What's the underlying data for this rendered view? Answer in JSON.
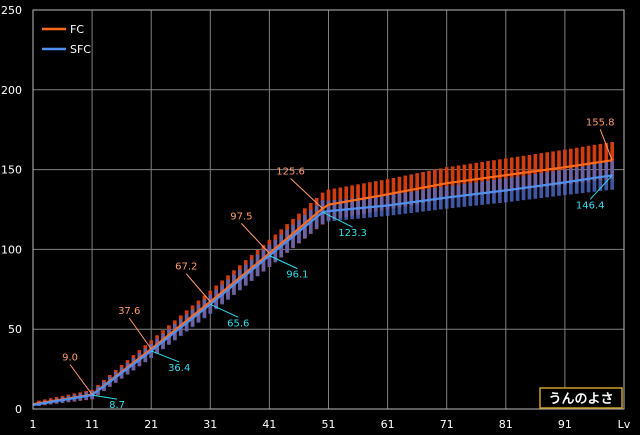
{
  "chart_data": {
    "type": "line",
    "xlabel": "Lv",
    "ylabel": "",
    "xlim": [
      1,
      101
    ],
    "ylim": [
      0,
      250
    ],
    "x_ticks": [
      "1",
      "11",
      "21",
      "31",
      "41",
      "51",
      "61",
      "71",
      "81",
      "91"
    ],
    "y_ticks": [
      "0",
      "50",
      "100",
      "150",
      "200",
      "250"
    ],
    "grid": true,
    "legend_position": "top-left",
    "colors": {
      "background": "#000000",
      "plot_border": "#bbbbbb",
      "grid": "#808080",
      "text": "#ffffff",
      "fc_line": "#ff6a1a",
      "fc_bar": "#d03d10",
      "sfc_line": "#4f8ff0",
      "sfc_bar": "#4f6ccc",
      "fc_label": "#ff9d6e",
      "sfc_label": "#33ddee",
      "credit_border": "#c8a030"
    },
    "series": [
      {
        "name": "FC",
        "points": [
          [
            1,
            3.0
          ],
          [
            11,
            9.0
          ],
          [
            21,
            37.6
          ],
          [
            31,
            67.2
          ],
          [
            41,
            97.5
          ],
          [
            50,
            125.6
          ],
          [
            51,
            128.0
          ],
          [
            61,
            134.5
          ],
          [
            71,
            141.5
          ],
          [
            81,
            146.5
          ],
          [
            91,
            151.5
          ],
          [
            99,
            155.8
          ]
        ],
        "band_half_width": [
          1.5,
          3.0,
          5.5,
          7.0,
          8.5,
          10.0,
          9.5,
          9.5,
          10.0,
          10.5,
          11.0,
          11.5
        ]
      },
      {
        "name": "SFC",
        "points": [
          [
            1,
            2.5
          ],
          [
            11,
            8.7
          ],
          [
            21,
            36.4
          ],
          [
            31,
            65.6
          ],
          [
            41,
            96.1
          ],
          [
            50,
            123.3
          ],
          [
            51,
            124.0
          ],
          [
            61,
            127.5
          ],
          [
            71,
            132.5
          ],
          [
            81,
            137.0
          ],
          [
            91,
            142.0
          ],
          [
            99,
            146.4
          ]
        ],
        "band_half_width": [
          1.0,
          2.5,
          4.5,
          6.0,
          7.0,
          7.5,
          6.5,
          6.5,
          7.0,
          7.5,
          8.0,
          9.0
        ]
      }
    ],
    "annotations": [
      {
        "series": "FC",
        "text": "9.0",
        "x": 11,
        "y": 9.0
      },
      {
        "series": "FC",
        "text": "37.6",
        "x": 21,
        "y": 37.6
      },
      {
        "series": "FC",
        "text": "67.2",
        "x": 31,
        "y": 67.2
      },
      {
        "series": "FC",
        "text": "97.5",
        "x": 41,
        "y": 97.5
      },
      {
        "series": "FC",
        "text": "125.6",
        "x": 50,
        "y": 125.6
      },
      {
        "series": "FC",
        "text": "155.8",
        "x": 99,
        "y": 155.8
      },
      {
        "series": "SFC",
        "text": "8.7",
        "x": 11,
        "y": 8.7
      },
      {
        "series": "SFC",
        "text": "36.4",
        "x": 21,
        "y": 36.4
      },
      {
        "series": "SFC",
        "text": "65.6",
        "x": 31,
        "y": 65.6
      },
      {
        "series": "SFC",
        "text": "96.1",
        "x": 41,
        "y": 96.1
      },
      {
        "series": "SFC",
        "text": "123.3",
        "x": 50,
        "y": 123.3
      },
      {
        "series": "SFC",
        "text": "146.4",
        "x": 99,
        "y": 146.4
      }
    ],
    "credit": "うんのよさ"
  }
}
